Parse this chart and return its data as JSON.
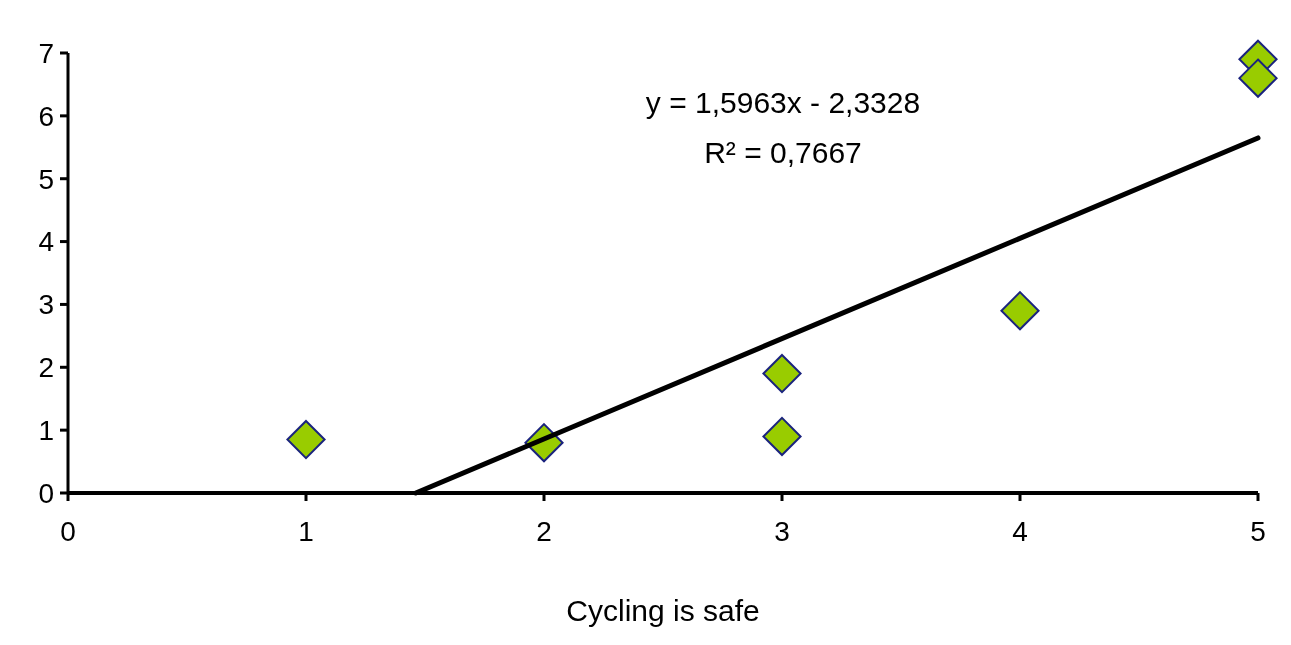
{
  "chart_data": {
    "type": "scatter",
    "xlabel": "Cycling is safe",
    "xlim": [
      0,
      5
    ],
    "xticks": [
      0,
      1,
      2,
      3,
      4,
      5
    ],
    "ylim": [
      0,
      7
    ],
    "yticks": [
      0,
      1,
      2,
      3,
      4,
      5,
      6,
      7
    ],
    "grid": false,
    "marker": "diamond",
    "series": [
      {
        "color": "#99cc00",
        "x": [
          1,
          2,
          3,
          3,
          4,
          5,
          5
        ],
        "values": [
          0.85,
          0.8,
          1.9,
          0.9,
          2.9,
          6.9,
          6.6
        ]
      },
      {
        "type": "line",
        "color": "#000000",
        "x": [
          1.4614,
          5
        ],
        "values": [
          0,
          5.6487
        ],
        "marker": "none",
        "line_style": "solid"
      }
    ],
    "annotations": [
      "y = 1,5963x - 2,3328",
      "R² = 0,7667"
    ]
  }
}
